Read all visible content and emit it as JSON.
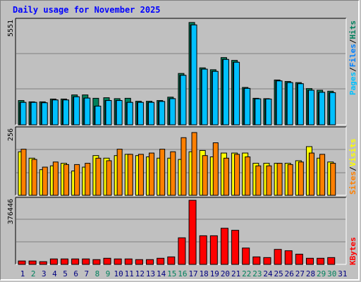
{
  "title": "Daily usage for November 2025",
  "colors": {
    "pages": "#00c0ff",
    "files": "#0080ff",
    "hits": "#00805c",
    "sites": "#ff8000",
    "visits": "#ffff00",
    "kbytes": "#ff0000",
    "weekend_day": "#00805c",
    "weekday": "#000080"
  },
  "side_labels": {
    "top": [
      "Pages",
      "Files",
      "Hits"
    ],
    "middle": [
      "Sites",
      "Visits"
    ],
    "bottom": [
      "KBytes"
    ]
  },
  "chart_data": [
    {
      "type": "bar",
      "name": "hits-files-pages",
      "ymax_label": "5551",
      "ylim": [
        0,
        5551
      ],
      "categories": [
        "1",
        "2",
        "3",
        "4",
        "5",
        "6",
        "7",
        "8",
        "9",
        "10",
        "11",
        "12",
        "13",
        "14",
        "15",
        "16",
        "17",
        "18",
        "19",
        "20",
        "21",
        "22",
        "23",
        "24",
        "25",
        "26",
        "27",
        "28",
        "29",
        "30",
        "31"
      ],
      "series": [
        {
          "name": "Hits",
          "values": [
            1300,
            1230,
            1230,
            1380,
            1380,
            1600,
            1600,
            1420,
            1450,
            1400,
            1420,
            1260,
            1260,
            1300,
            1480,
            2750,
            5480,
            3050,
            2950,
            3600,
            3450,
            2000,
            1420,
            1400,
            2400,
            2320,
            2260,
            1940,
            1850,
            1800,
            0
          ]
        },
        {
          "name": "Files",
          "values": [
            1200,
            1200,
            1180,
            1330,
            1330,
            1500,
            1430,
            1000,
            1300,
            1300,
            1200,
            1200,
            1200,
            1250,
            1400,
            2650,
            5350,
            2980,
            2860,
            3500,
            3350,
            1950,
            1390,
            1380,
            2350,
            2260,
            2200,
            1850,
            1740,
            1720,
            0
          ]
        },
        {
          "name": "Pages",
          "values": [
            1200,
            1200,
            1180,
            1330,
            1330,
            1500,
            1430,
            1000,
            1300,
            1300,
            1200,
            1200,
            1200,
            1250,
            1400,
            2650,
            5350,
            2980,
            2860,
            3500,
            3350,
            1950,
            1390,
            1380,
            2350,
            2260,
            2200,
            1850,
            1740,
            1720,
            0
          ]
        }
      ]
    },
    {
      "type": "bar",
      "name": "visits-sites",
      "ymax_label": "256",
      "ylim": [
        0,
        256
      ],
      "categories": [
        "1",
        "2",
        "3",
        "4",
        "5",
        "6",
        "7",
        "8",
        "9",
        "10",
        "11",
        "12",
        "13",
        "14",
        "15",
        "16",
        "17",
        "18",
        "19",
        "20",
        "21",
        "22",
        "23",
        "24",
        "25",
        "26",
        "27",
        "28",
        "29",
        "30",
        "31"
      ],
      "series": [
        {
          "name": "Visits",
          "values": [
            170,
            145,
            100,
            115,
            125,
            95,
            110,
            155,
            145,
            155,
            160,
            155,
            150,
            145,
            145,
            140,
            170,
            175,
            150,
            165,
            165,
            165,
            125,
            125,
            125,
            125,
            135,
            190,
            145,
            130,
            0
          ]
        },
        {
          "name": "Sites",
          "values": [
            180,
            140,
            110,
            130,
            120,
            120,
            125,
            145,
            135,
            180,
            160,
            160,
            165,
            180,
            170,
            225,
            245,
            155,
            205,
            145,
            160,
            150,
            115,
            115,
            125,
            120,
            130,
            165,
            160,
            125,
            0
          ]
        }
      ]
    },
    {
      "type": "bar",
      "name": "kbytes",
      "ymax_label": "376446",
      "ylim": [
        0,
        376446
      ],
      "categories": [
        "1",
        "2",
        "3",
        "4",
        "5",
        "6",
        "7",
        "8",
        "9",
        "10",
        "11",
        "12",
        "13",
        "14",
        "15",
        "16",
        "17",
        "18",
        "19",
        "20",
        "21",
        "22",
        "23",
        "24",
        "25",
        "26",
        "27",
        "28",
        "29",
        "30",
        "31"
      ],
      "series": [
        {
          "name": "KBytes",
          "values": [
            20000,
            20000,
            16000,
            32000,
            32000,
            32000,
            32000,
            28000,
            36000,
            32000,
            32000,
            28000,
            28000,
            36000,
            44000,
            156000,
            376000,
            168000,
            168000,
            212000,
            200000,
            96000,
            44000,
            40000,
            88000,
            80000,
            60000,
            36000,
            36000,
            40000,
            0
          ]
        }
      ]
    }
  ],
  "days": [
    {
      "label": "1",
      "weekend": false
    },
    {
      "label": "2",
      "weekend": true
    },
    {
      "label": "3",
      "weekend": false
    },
    {
      "label": "4",
      "weekend": false
    },
    {
      "label": "5",
      "weekend": false
    },
    {
      "label": "6",
      "weekend": false
    },
    {
      "label": "7",
      "weekend": false
    },
    {
      "label": "8",
      "weekend": true
    },
    {
      "label": "9",
      "weekend": true
    },
    {
      "label": "10",
      "weekend": false
    },
    {
      "label": "11",
      "weekend": false
    },
    {
      "label": "12",
      "weekend": false
    },
    {
      "label": "13",
      "weekend": false
    },
    {
      "label": "14",
      "weekend": false
    },
    {
      "label": "15",
      "weekend": true
    },
    {
      "label": "16",
      "weekend": true
    },
    {
      "label": "17",
      "weekend": false
    },
    {
      "label": "18",
      "weekend": false
    },
    {
      "label": "19",
      "weekend": false
    },
    {
      "label": "20",
      "weekend": false
    },
    {
      "label": "21",
      "weekend": false
    },
    {
      "label": "22",
      "weekend": true
    },
    {
      "label": "23",
      "weekend": true
    },
    {
      "label": "24",
      "weekend": false
    },
    {
      "label": "25",
      "weekend": false
    },
    {
      "label": "26",
      "weekend": false
    },
    {
      "label": "27",
      "weekend": false
    },
    {
      "label": "28",
      "weekend": false
    },
    {
      "label": "29",
      "weekend": true
    },
    {
      "label": "30",
      "weekend": true
    },
    {
      "label": "31",
      "weekend": false
    }
  ]
}
